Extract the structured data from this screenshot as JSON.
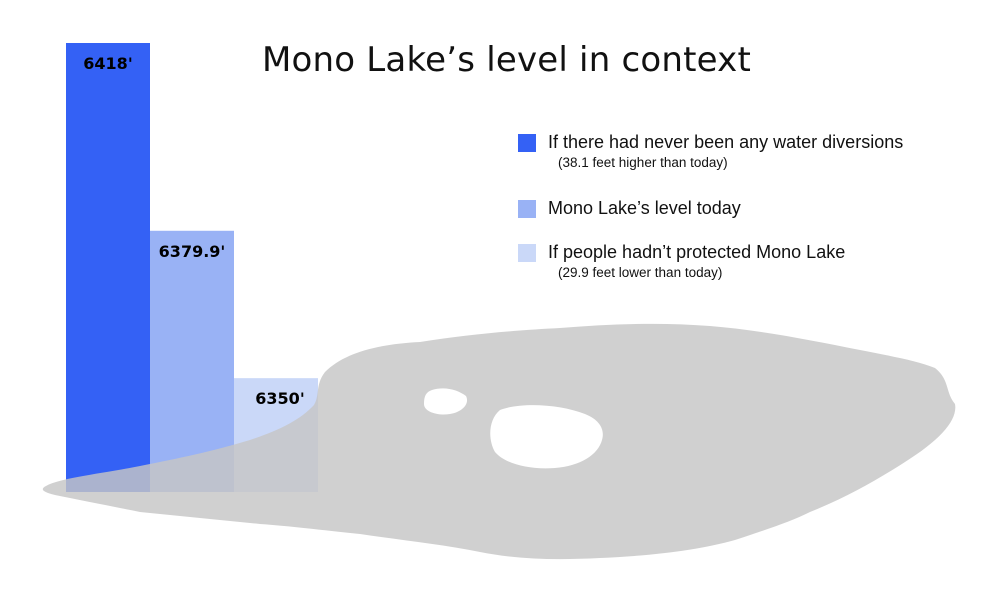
{
  "chart_data": {
    "type": "bar",
    "title": "Mono Lake’s level in context",
    "unit": "feet",
    "categories": [
      "If there had never been any water diversions",
      "Mono Lake’s level today",
      "If people hadn’t protected Mono Lake"
    ],
    "values": [
      6418,
      6379.9,
      6350
    ],
    "value_labels": [
      "6418'",
      "6379.9'",
      "6350'"
    ],
    "notes": [
      "(38.1 feet higher than today)",
      "",
      "(29.9 feet lower than today)"
    ],
    "colors": [
      "#3461f5",
      "#99b2f5",
      "#cad8f8"
    ],
    "lake_color": "#c6c6c6",
    "legend_position": "right",
    "grid": false
  }
}
